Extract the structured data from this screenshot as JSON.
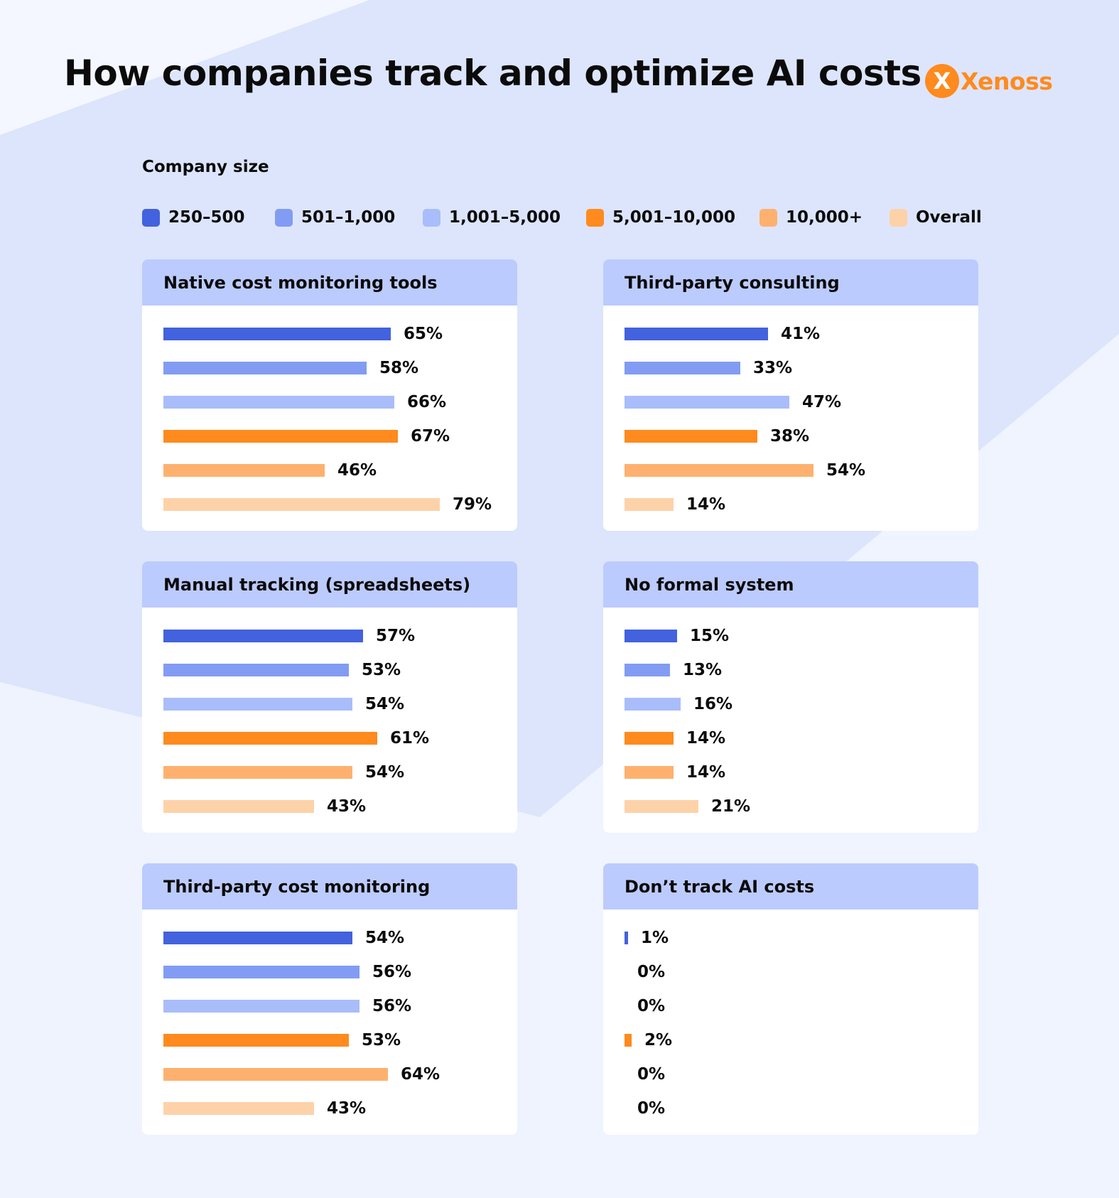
{
  "title": "How companies track and optimize AI costs",
  "logo": {
    "text": "Xenoss",
    "mark": "X"
  },
  "legend_title": "Company size",
  "colors": {
    "background": "#eef3fe",
    "panel_header": "#bccbfd",
    "accent": "#ff8a1e"
  },
  "chart_data": {
    "type": "bar",
    "orientation": "horizontal",
    "title": "How companies track and optimize AI costs",
    "legend_title": "Company size",
    "categories": [
      "250–500",
      "501–1,000",
      "1,001–5,000",
      "5,001–10,000",
      "10,000+",
      "Overall"
    ],
    "category_colors": [
      "#4262de",
      "#829cf3",
      "#a9bdfa",
      "#ff8a1e",
      "#feb16f",
      "#fed2a8"
    ],
    "unit": "%",
    "xlim": [
      0,
      100
    ],
    "panels": [
      {
        "title": "Native cost monitoring tools",
        "values": [
          65,
          58,
          66,
          67,
          46,
          79
        ]
      },
      {
        "title": "Third-party consulting",
        "values": [
          41,
          33,
          47,
          38,
          54,
          14
        ]
      },
      {
        "title": "Manual tracking (spreadsheets)",
        "values": [
          57,
          53,
          54,
          61,
          54,
          43
        ]
      },
      {
        "title": "No formal system",
        "values": [
          15,
          13,
          16,
          14,
          14,
          21
        ]
      },
      {
        "title": "Third-party cost monitoring",
        "values": [
          54,
          56,
          56,
          53,
          64,
          43
        ]
      },
      {
        "title": "Don’t track AI costs",
        "values": [
          1,
          0,
          0,
          2,
          0,
          0
        ]
      }
    ]
  }
}
